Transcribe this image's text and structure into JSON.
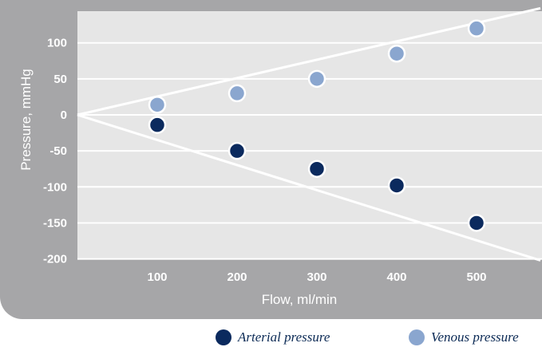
{
  "chart_data": {
    "type": "line",
    "xlabel": "Flow, ml/min",
    "ylabel": "Pressure, mmHg",
    "xlim": [
      0,
      580
    ],
    "ylim": [
      -200,
      145
    ],
    "x_ticks": [
      "100",
      "200",
      "300",
      "400",
      "500"
    ],
    "x_tick_values": [
      100,
      200,
      300,
      400,
      500
    ],
    "y_ticks": [
      "100",
      "50",
      "0",
      "-50",
      "-100",
      "-150",
      "-200"
    ],
    "y_tick_values": [
      100,
      50,
      0,
      -50,
      -100,
      -150,
      -200
    ],
    "grid": true,
    "legend_position": "bottom-right",
    "colors": {
      "background": "#a6a6a8",
      "plot_area": "#e6e6e6",
      "grid": "#ffffff",
      "trend_line": "#ffffff",
      "arterial": "#0b2a5e",
      "venous": "#8aa6cf"
    },
    "series": [
      {
        "name": "Arterial pressure",
        "color": "#0b2a5e",
        "x": [
          100,
          200,
          300,
          400,
          500
        ],
        "y": [
          -14,
          -50,
          -75,
          -98,
          -150
        ]
      },
      {
        "name": "Venous pressure",
        "color": "#8aa6cf",
        "x": [
          100,
          200,
          300,
          400,
          500
        ],
        "y": [
          14,
          30,
          50,
          85,
          120
        ]
      }
    ],
    "trend_lines": [
      {
        "x": [
          0,
          580
        ],
        "y": [
          0,
          -202
        ]
      },
      {
        "x": [
          0,
          580
        ],
        "y": [
          0,
          148
        ]
      }
    ]
  }
}
